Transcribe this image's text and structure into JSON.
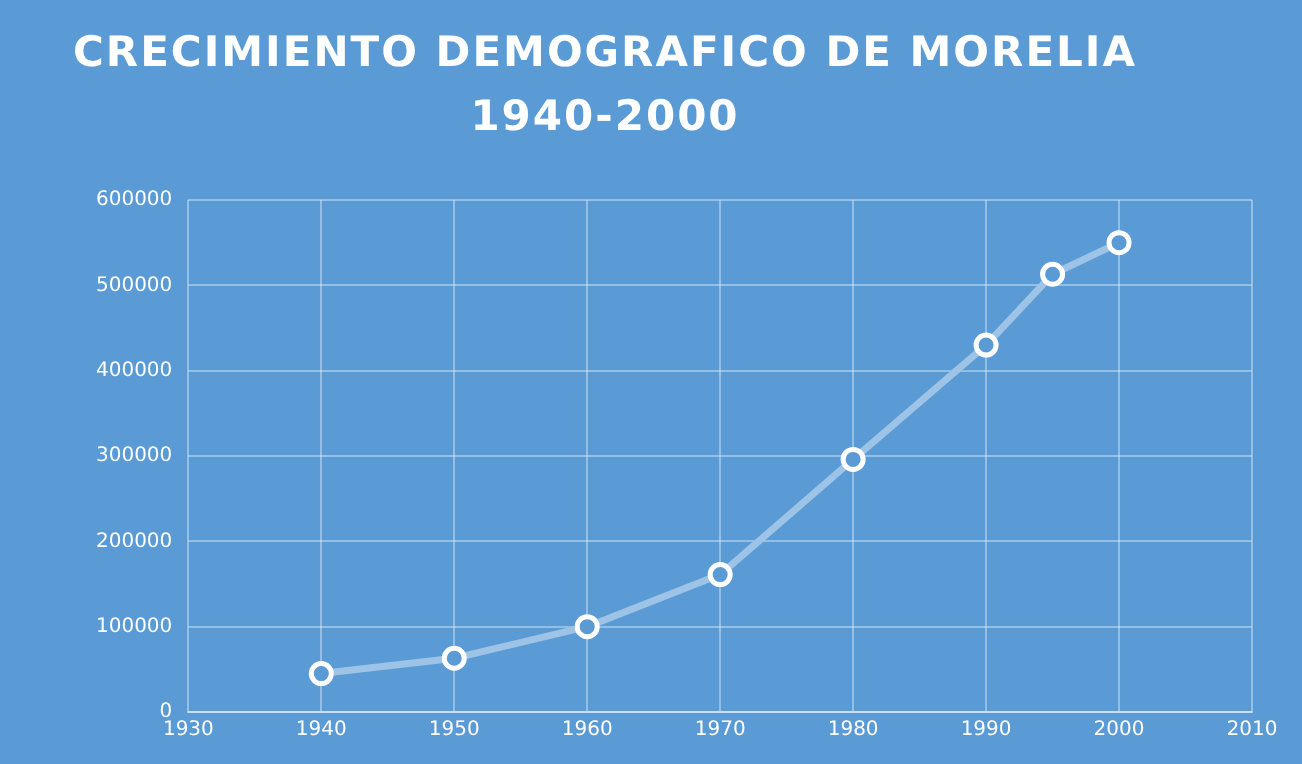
{
  "chart_data": {
    "type": "line",
    "title": "CRECIMIENTO DEMOGRAFICO DE MORELIA 1940-2000",
    "x": [
      1940,
      1950,
      1960,
      1970,
      1980,
      1990,
      1995,
      2000
    ],
    "series": [
      {
        "color": "#9dc3e6",
        "values": [
          45000,
          63000,
          100000,
          161000,
          296000,
          430000,
          513000,
          550000
        ]
      }
    ],
    "xlim": [
      1930,
      2010
    ],
    "xticks": [
      1930,
      1940,
      1950,
      1960,
      1970,
      1980,
      1990,
      2000,
      2010
    ],
    "ylim": [
      0,
      600000
    ],
    "yticks": [
      0,
      100000,
      200000,
      300000,
      400000,
      500000,
      600000
    ],
    "grid": true,
    "legend": false,
    "marker": "circle",
    "line_style": "solid"
  }
}
